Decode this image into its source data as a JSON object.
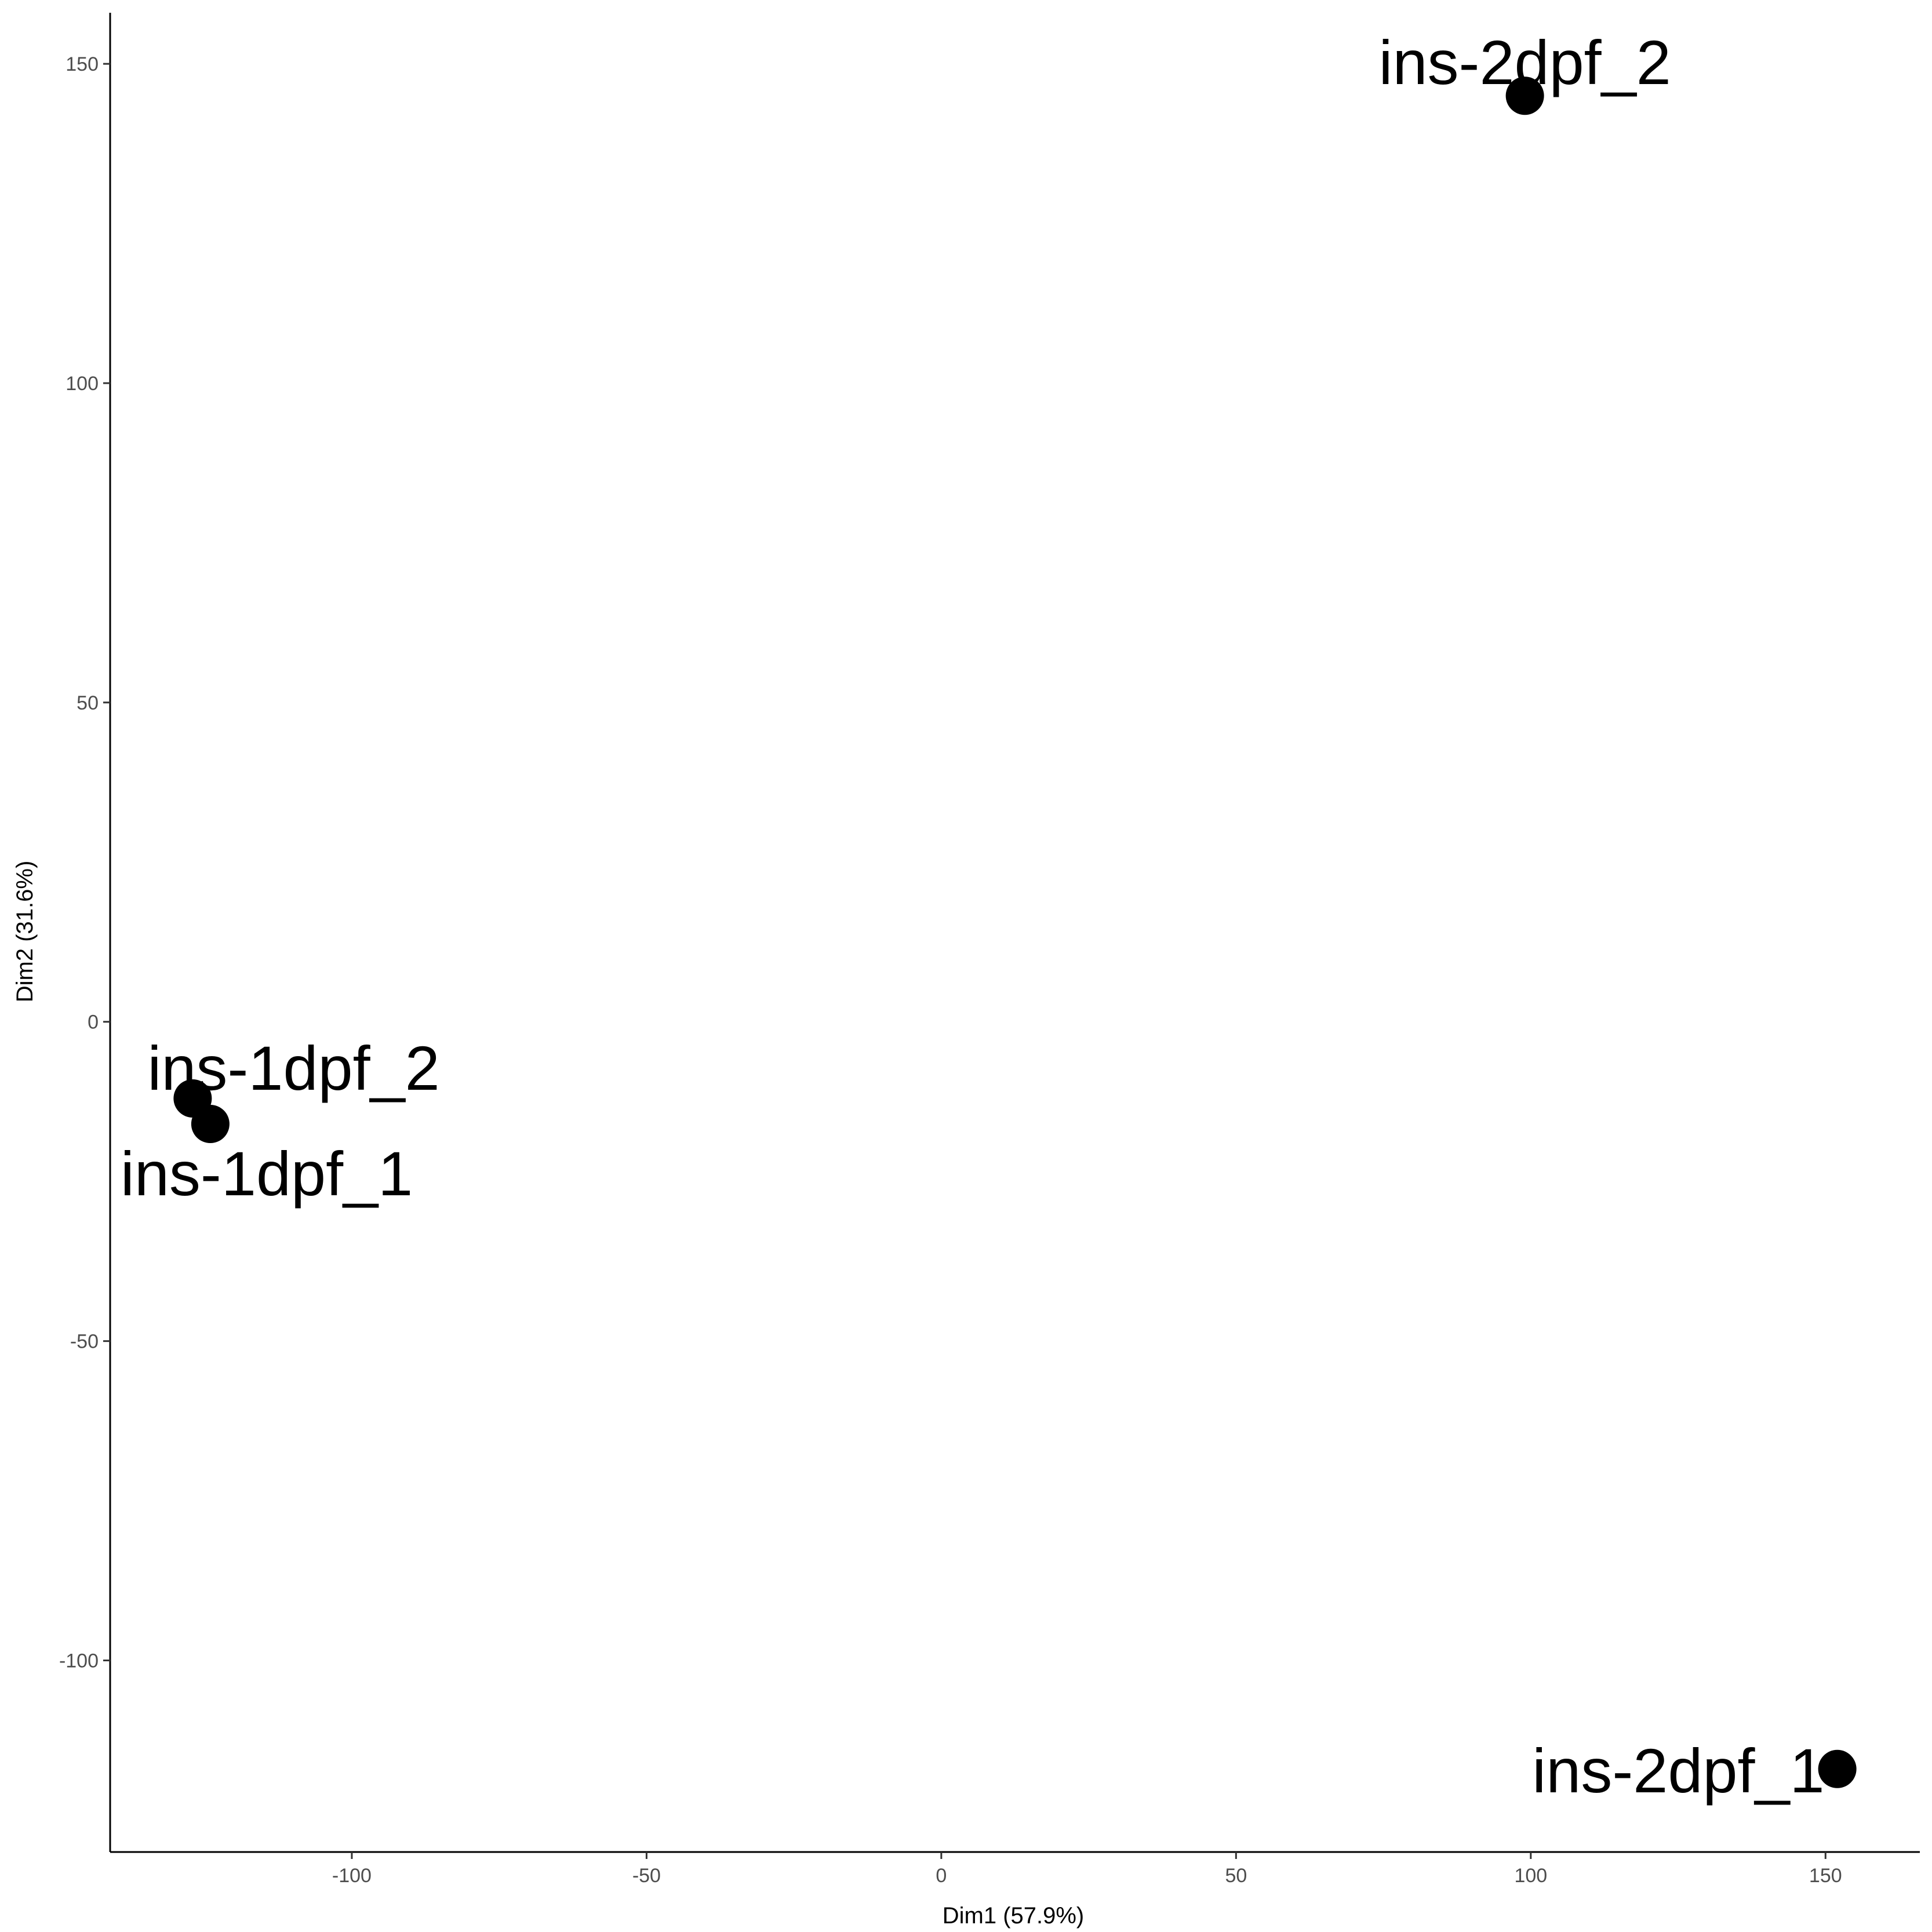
{
  "chart_data": {
    "type": "scatter",
    "title": "",
    "xlabel": "Dim1 (57.9%)",
    "ylabel": "Dim2 (31.6%)",
    "xlim": [
      -141,
      166
    ],
    "ylim": [
      -130,
      158
    ],
    "xticks": [
      -100,
      -50,
      0,
      50,
      100,
      150
    ],
    "yticks": [
      -100,
      -50,
      0,
      50,
      100,
      150
    ],
    "grid": false,
    "legend": "none",
    "colors": {
      "point": "#000000",
      "axis": "#000000",
      "tick_text": "#4d4d4d",
      "connector": "#bfbfbf"
    },
    "points": [
      {
        "label": "ins-1dpf_1",
        "x": -124,
        "y": -16
      },
      {
        "label": "ins-1dpf_2",
        "x": -127,
        "y": -12
      },
      {
        "label": "ins-2dpf_1",
        "x": 152,
        "y": -117
      },
      {
        "label": "ins-2dpf_2",
        "x": 99,
        "y": 145
      }
    ]
  }
}
